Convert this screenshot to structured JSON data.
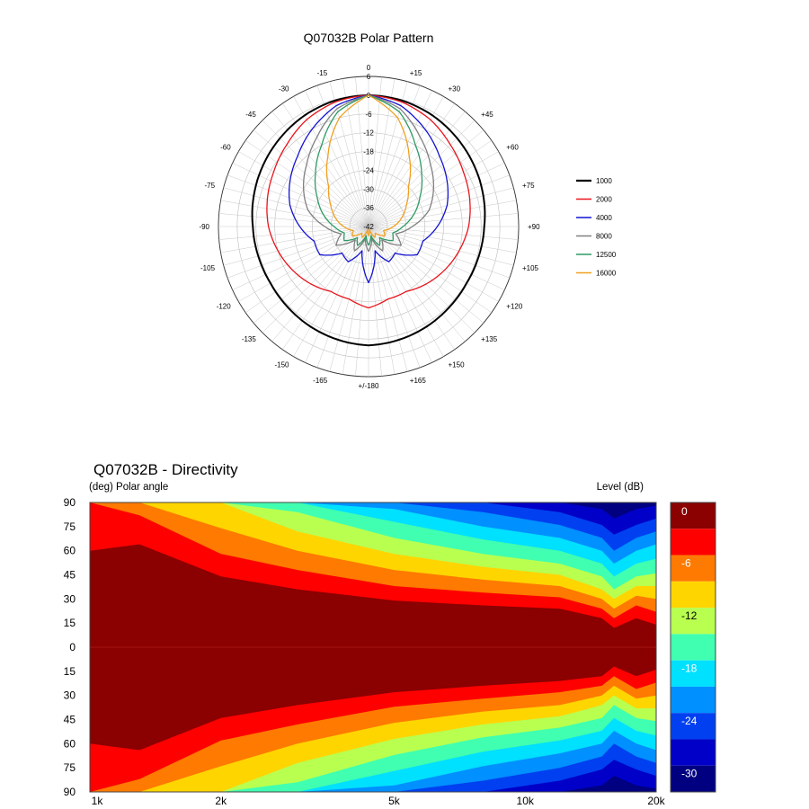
{
  "chart_data": [
    {
      "type": "polar",
      "title": "Q07032B Polar Pattern",
      "radial_labels": [
        "6",
        "0",
        "-6",
        "-12",
        "-18",
        "-24",
        "-30",
        "-36",
        "-42"
      ],
      "radial_range": [
        -42,
        6
      ],
      "angle_labels": [
        "0",
        "+15",
        "+30",
        "+45",
        "+60",
        "+75",
        "+90",
        "+105",
        "+120",
        "+135",
        "+150",
        "+165",
        "+/-180",
        "-165",
        "-150",
        "-135",
        "-120",
        "-105",
        "-90",
        "-75",
        "-60",
        "-45",
        "-30",
        "-15"
      ],
      "legend_position": "right",
      "series": [
        {
          "name": "1000",
          "color": "#000000",
          "angles": [
            0,
            15,
            30,
            45,
            60,
            75,
            90,
            105,
            120,
            135,
            150,
            165,
            180
          ],
          "values": [
            0,
            -0.3,
            -1,
            -2,
            -3,
            -4,
            -5,
            -5.5,
            -5.8,
            -5.5,
            -5,
            -4.5,
            -4
          ]
        },
        {
          "name": "2000",
          "color": "#e8141c",
          "angles": [
            0,
            15,
            30,
            45,
            60,
            75,
            90,
            105,
            120,
            135,
            150,
            165,
            180
          ],
          "values": [
            0,
            -0.8,
            -2.5,
            -5,
            -7,
            -8.5,
            -10,
            -12,
            -14,
            -16,
            -18,
            -18,
            -16
          ]
        },
        {
          "name": "4000",
          "color": "#1414d2",
          "angles": [
            0,
            15,
            30,
            45,
            60,
            75,
            90,
            105,
            120,
            135,
            150,
            165,
            180
          ],
          "values": [
            0,
            -2,
            -6,
            -10,
            -13,
            -16,
            -20,
            -24,
            -24,
            -30,
            -29,
            -34,
            -24
          ]
        },
        {
          "name": "8000",
          "color": "#808080",
          "angles": [
            0,
            15,
            30,
            45,
            60,
            75,
            90,
            105,
            120,
            135,
            150,
            165,
            180
          ],
          "values": [
            0,
            -3,
            -9,
            -14,
            -18,
            -22,
            -28,
            -33,
            -30,
            -36,
            -33,
            -38,
            -34
          ]
        },
        {
          "name": "12500",
          "color": "#2e9a64",
          "angles": [
            0,
            15,
            30,
            45,
            60,
            75,
            90,
            105,
            120,
            135,
            150,
            165,
            180
          ],
          "values": [
            0,
            -4,
            -12,
            -18,
            -23,
            -27,
            -31,
            -34,
            -33,
            -37,
            -35,
            -39,
            -36
          ]
        },
        {
          "name": "16000",
          "color": "#f0a020",
          "angles": [
            0,
            15,
            30,
            45,
            60,
            75,
            90,
            105,
            120,
            135,
            150,
            165,
            180
          ],
          "values": [
            0,
            -6,
            -16,
            -24,
            -28,
            -31,
            -34,
            -37,
            -36,
            -39,
            -38,
            -41,
            -39
          ]
        }
      ]
    },
    {
      "type": "heatmap",
      "title": "Q07032B - Directivity",
      "ylabel": "(deg)  Polar angle",
      "colorbar_label": "Level  (dB)",
      "x_scale": "log",
      "x_range": [
        1000,
        20000
      ],
      "x_ticks": [
        1000,
        2000,
        5000,
        10000,
        20000
      ],
      "x_tick_labels": [
        "1k",
        "2k",
        "5k",
        "10k",
        "20k"
      ],
      "y_range": [
        -90,
        90
      ],
      "y_tick_labels": [
        "90",
        "75",
        "60",
        "45",
        "30",
        "15",
        "0",
        "15",
        "30",
        "45",
        "60",
        "75",
        "90"
      ],
      "colorbar_tick_labels": [
        "0",
        "-6",
        "-12",
        "-18",
        "-24",
        "-30"
      ],
      "level_range": [
        -33,
        0
      ],
      "contour_levels": [
        {
          "level": 0,
          "color": "#8b0000"
        },
        {
          "level": -3,
          "color": "#ff0000"
        },
        {
          "level": -6,
          "color": "#ff7a00"
        },
        {
          "level": -9,
          "color": "#ffd500"
        },
        {
          "level": -12,
          "color": "#b8ff50"
        },
        {
          "level": -15,
          "color": "#40ffb0"
        },
        {
          "level": -18,
          "color": "#00e0ff"
        },
        {
          "level": -21,
          "color": "#0090ff"
        },
        {
          "level": -24,
          "color": "#0040f0"
        },
        {
          "level": -27,
          "color": "#0000c8"
        },
        {
          "level": -30,
          "color": "#000080"
        }
      ],
      "contours_upper": [
        {
          "level": -3,
          "frequencies": [
            1000,
            1300,
            2000,
            3000,
            5000,
            8000,
            12000,
            15000,
            16000,
            18000,
            20000
          ],
          "angles": [
            60,
            64,
            44,
            36,
            29,
            26,
            24,
            18,
            12,
            18,
            14
          ]
        },
        {
          "level": -6,
          "frequencies": [
            1000,
            1300,
            2000,
            3000,
            5000,
            8000,
            12000,
            15000,
            16000,
            18000,
            20000
          ],
          "angles": [
            90,
            82,
            58,
            48,
            38,
            34,
            31,
            24,
            18,
            26,
            22
          ]
        },
        {
          "level": -9,
          "frequencies": [
            1000,
            1300,
            2000,
            3000,
            5000,
            8000,
            12000,
            15000,
            16000,
            18000,
            20000
          ],
          "angles": [
            90,
            90,
            74,
            60,
            48,
            42,
            38,
            30,
            24,
            32,
            30
          ]
        },
        {
          "level": -12,
          "frequencies": [
            1000,
            1300,
            2000,
            3000,
            5000,
            8000,
            12000,
            15000,
            16000,
            18000,
            20000
          ],
          "angles": [
            90,
            90,
            90,
            72,
            58,
            50,
            45,
            36,
            30,
            38,
            38
          ]
        },
        {
          "level": -15,
          "frequencies": [
            1000,
            1300,
            2000,
            3000,
            5000,
            8000,
            12000,
            15000,
            16000,
            18000,
            20000
          ],
          "angles": [
            90,
            90,
            90,
            84,
            68,
            58,
            52,
            44,
            36,
            44,
            46
          ]
        },
        {
          "level": -18,
          "frequencies": [
            1000,
            1300,
            2000,
            3000,
            5000,
            8000,
            12000,
            15000,
            16000,
            18000,
            20000
          ],
          "angles": [
            90,
            90,
            90,
            90,
            78,
            67,
            60,
            52,
            44,
            52,
            55
          ]
        },
        {
          "level": -21,
          "frequencies": [
            1000,
            1300,
            2000,
            3000,
            5000,
            8000,
            12000,
            15000,
            16000,
            18000,
            20000
          ],
          "angles": [
            90,
            90,
            90,
            90,
            86,
            75,
            68,
            60,
            52,
            60,
            64
          ]
        },
        {
          "level": -24,
          "frequencies": [
            1000,
            1300,
            2000,
            3000,
            5000,
            8000,
            12000,
            15000,
            16000,
            18000,
            20000
          ],
          "angles": [
            90,
            90,
            90,
            90,
            90,
            84,
            76,
            68,
            60,
            68,
            72
          ]
        },
        {
          "level": -27,
          "frequencies": [
            1000,
            1300,
            2000,
            3000,
            5000,
            8000,
            12000,
            15000,
            16000,
            18000,
            20000
          ],
          "angles": [
            90,
            90,
            90,
            90,
            90,
            90,
            84,
            76,
            70,
            76,
            80
          ]
        },
        {
          "level": -30,
          "frequencies": [
            1000,
            1300,
            2000,
            3000,
            5000,
            8000,
            12000,
            15000,
            16000,
            18000,
            20000
          ],
          "angles": [
            90,
            90,
            90,
            90,
            90,
            90,
            90,
            86,
            80,
            86,
            88
          ]
        }
      ],
      "contours_lower": [
        {
          "level": -3,
          "frequencies": [
            1000,
            1300,
            2000,
            3000,
            5000,
            8000,
            12000,
            15000,
            16000,
            18000,
            20000
          ],
          "angles": [
            -60,
            -64,
            -44,
            -36,
            -28,
            -24,
            -21,
            -18,
            -12,
            -18,
            -14
          ]
        },
        {
          "level": -6,
          "frequencies": [
            1000,
            1300,
            2000,
            3000,
            5000,
            8000,
            12000,
            15000,
            16000,
            18000,
            20000
          ],
          "angles": [
            -90,
            -82,
            -58,
            -48,
            -37,
            -32,
            -28,
            -24,
            -18,
            -26,
            -22
          ]
        },
        {
          "level": -9,
          "frequencies": [
            1000,
            1300,
            2000,
            3000,
            5000,
            8000,
            12000,
            15000,
            16000,
            18000,
            20000
          ],
          "angles": [
            -90,
            -90,
            -74,
            -60,
            -47,
            -40,
            -36,
            -30,
            -24,
            -32,
            -30
          ]
        },
        {
          "level": -12,
          "frequencies": [
            1000,
            1300,
            2000,
            3000,
            5000,
            8000,
            12000,
            15000,
            16000,
            18000,
            20000
          ],
          "angles": [
            -90,
            -90,
            -90,
            -72,
            -57,
            -48,
            -43,
            -36,
            -30,
            -38,
            -38
          ]
        },
        {
          "level": -15,
          "frequencies": [
            1000,
            1300,
            2000,
            3000,
            5000,
            8000,
            12000,
            15000,
            16000,
            18000,
            20000
          ],
          "angles": [
            -90,
            -90,
            -90,
            -84,
            -67,
            -56,
            -50,
            -44,
            -36,
            -44,
            -46
          ]
        },
        {
          "level": -18,
          "frequencies": [
            1000,
            1300,
            2000,
            3000,
            5000,
            8000,
            12000,
            15000,
            16000,
            18000,
            20000
          ],
          "angles": [
            -90,
            -90,
            -90,
            -90,
            -77,
            -65,
            -58,
            -52,
            -44,
            -52,
            -55
          ]
        },
        {
          "level": -21,
          "frequencies": [
            1000,
            1300,
            2000,
            3000,
            5000,
            8000,
            12000,
            15000,
            16000,
            18000,
            20000
          ],
          "angles": [
            -90,
            -90,
            -90,
            -90,
            -86,
            -74,
            -66,
            -60,
            -52,
            -60,
            -64
          ]
        },
        {
          "level": -24,
          "frequencies": [
            1000,
            1300,
            2000,
            3000,
            5000,
            8000,
            12000,
            15000,
            16000,
            18000,
            20000
          ],
          "angles": [
            -90,
            -90,
            -90,
            -90,
            -90,
            -83,
            -75,
            -68,
            -60,
            -68,
            -72
          ]
        },
        {
          "level": -27,
          "frequencies": [
            1000,
            1300,
            2000,
            3000,
            5000,
            8000,
            12000,
            15000,
            16000,
            18000,
            20000
          ],
          "angles": [
            -90,
            -90,
            -90,
            -90,
            -90,
            -90,
            -83,
            -76,
            -70,
            -76,
            -80
          ]
        },
        {
          "level": -30,
          "frequencies": [
            1000,
            1300,
            2000,
            3000,
            5000,
            8000,
            12000,
            15000,
            16000,
            18000,
            20000
          ],
          "angles": [
            -90,
            -90,
            -90,
            -90,
            -90,
            -90,
            -90,
            -86,
            -80,
            -86,
            -88
          ]
        }
      ]
    }
  ]
}
